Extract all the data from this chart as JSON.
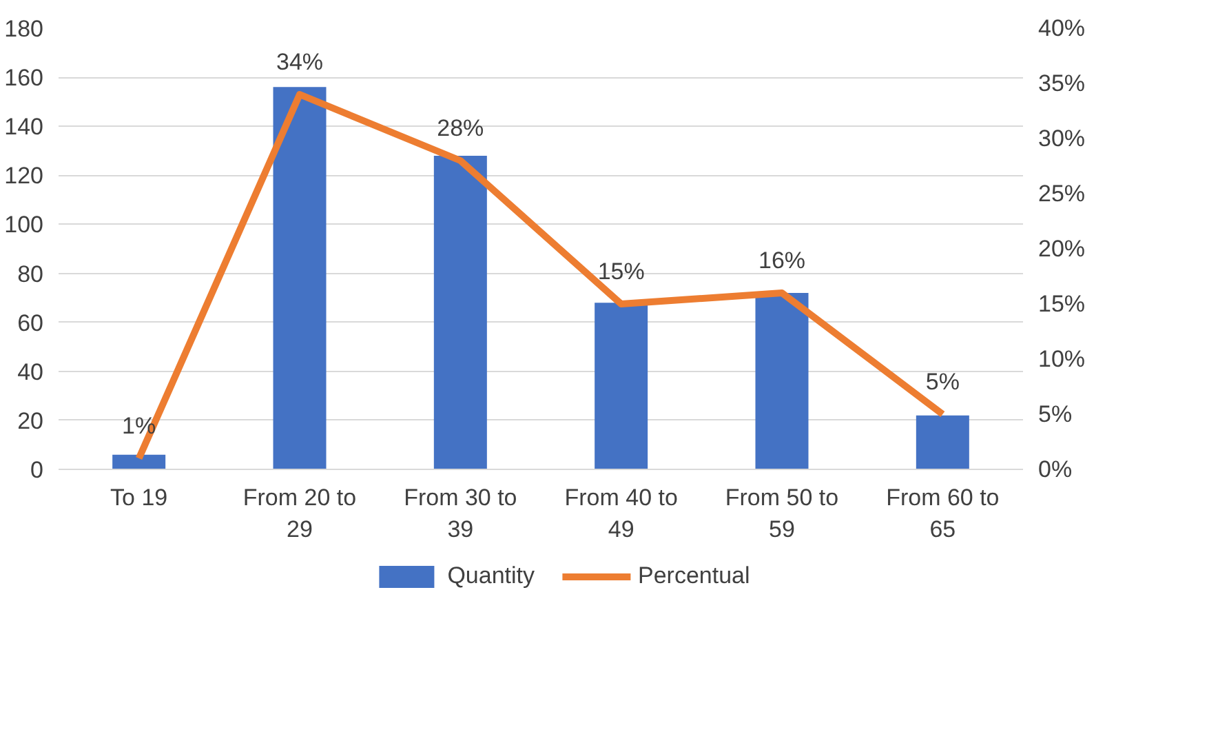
{
  "chart_data": {
    "type": "bar",
    "categories": [
      "To 19",
      "From 20 to 29",
      "From 30 to 39",
      "From 40 to 49",
      "From 50 to 59",
      "From 60 to 65"
    ],
    "series": [
      {
        "name": "Quantity",
        "color": "#4472c4",
        "values": [
          6,
          156,
          128,
          68,
          72,
          22
        ]
      },
      {
        "name": "Percentual",
        "type": "line",
        "axis": "y2",
        "color": "#ed7d31",
        "values": [
          1,
          34,
          28,
          15,
          16,
          5
        ],
        "value_labels": [
          "1%",
          "34%",
          "28%",
          "15%",
          "16%",
          "5%"
        ]
      }
    ],
    "ylim": [
      0,
      180
    ],
    "yticks": [
      0,
      20,
      40,
      60,
      80,
      100,
      120,
      140,
      160,
      180
    ],
    "y2lim": [
      0,
      40
    ],
    "y2ticks": [
      {
        "value": 0,
        "label": "0%"
      },
      {
        "value": 5,
        "label": "5%"
      },
      {
        "value": 10,
        "label": "10%"
      },
      {
        "value": 15,
        "label": "15%"
      },
      {
        "value": 20,
        "label": "20%"
      },
      {
        "value": 25,
        "label": "25%"
      },
      {
        "value": 30,
        "label": "30%"
      },
      {
        "value": 35,
        "label": "35%"
      },
      {
        "value": 40,
        "label": "40%"
      }
    ],
    "grid": "y",
    "legend": "bottom",
    "marker": "none",
    "line_style": "solid"
  }
}
